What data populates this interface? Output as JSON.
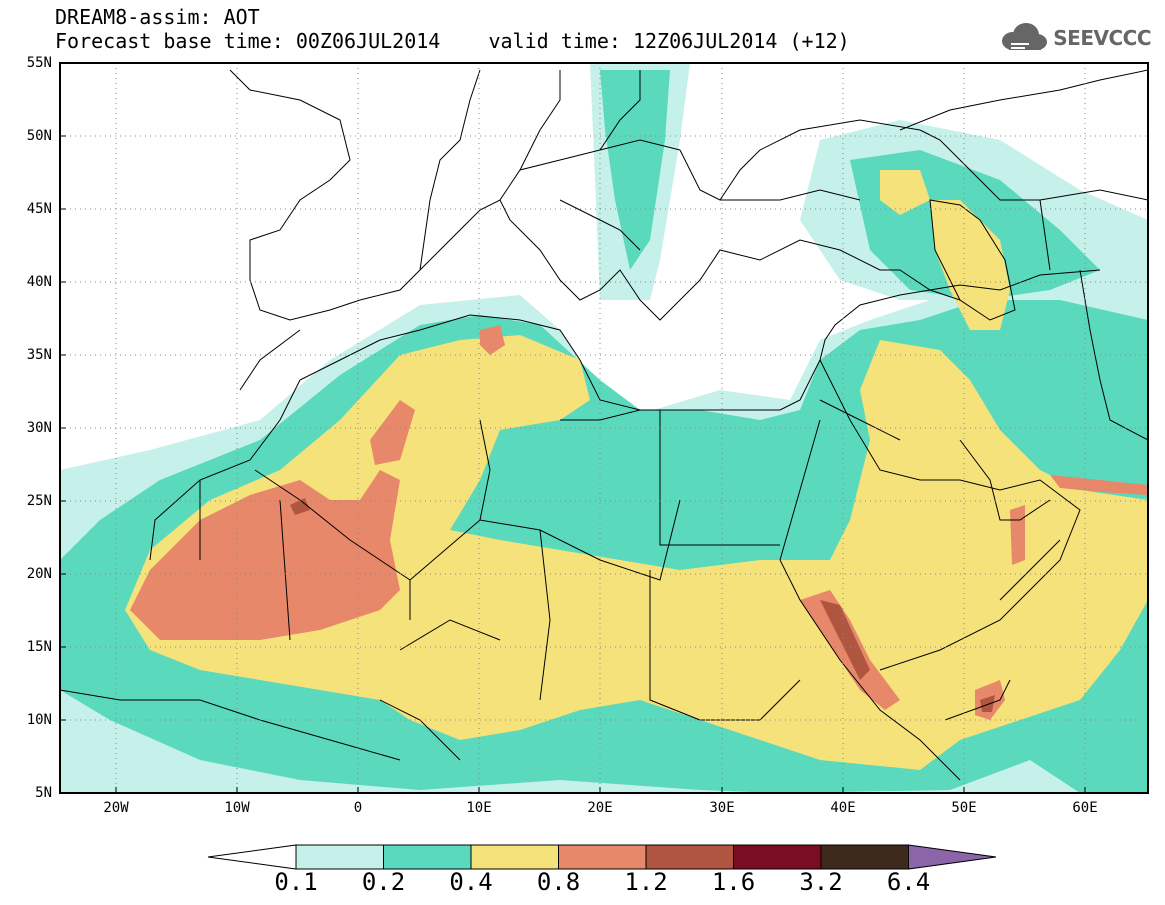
{
  "header": {
    "title_line1": "DREAM8-assim: AOT",
    "title_line2": "Forecast base time: 00Z06JUL2014    valid time: 12Z06JUL2014 (+12)"
  },
  "logo": {
    "icon": "cloud-icon",
    "text": "SEEVCCC"
  },
  "map": {
    "lat_labels": [
      "55N",
      "50N",
      "45N",
      "40N",
      "35N",
      "30N",
      "25N",
      "20N",
      "15N",
      "10N",
      "5N"
    ],
    "lon_labels": [
      "20W",
      "10W",
      "0",
      "10E",
      "20E",
      "30E",
      "40E",
      "50E",
      "60E"
    ],
    "extent": {
      "lon_min": -25,
      "lon_max": 65,
      "lat_min": 5,
      "lat_max": 55
    }
  },
  "colorbar": {
    "labels": [
      "0.1",
      "0.2",
      "0.4",
      "0.8",
      "1.2",
      "1.6",
      "3.2",
      "6.4"
    ],
    "colors": [
      "#ffffff",
      "#c6f0ea",
      "#5ad9bd",
      "#f5e27a",
      "#e8886a",
      "#b05540",
      "#7a0d24",
      "#3e2a1c",
      "#8c64a8"
    ]
  }
}
